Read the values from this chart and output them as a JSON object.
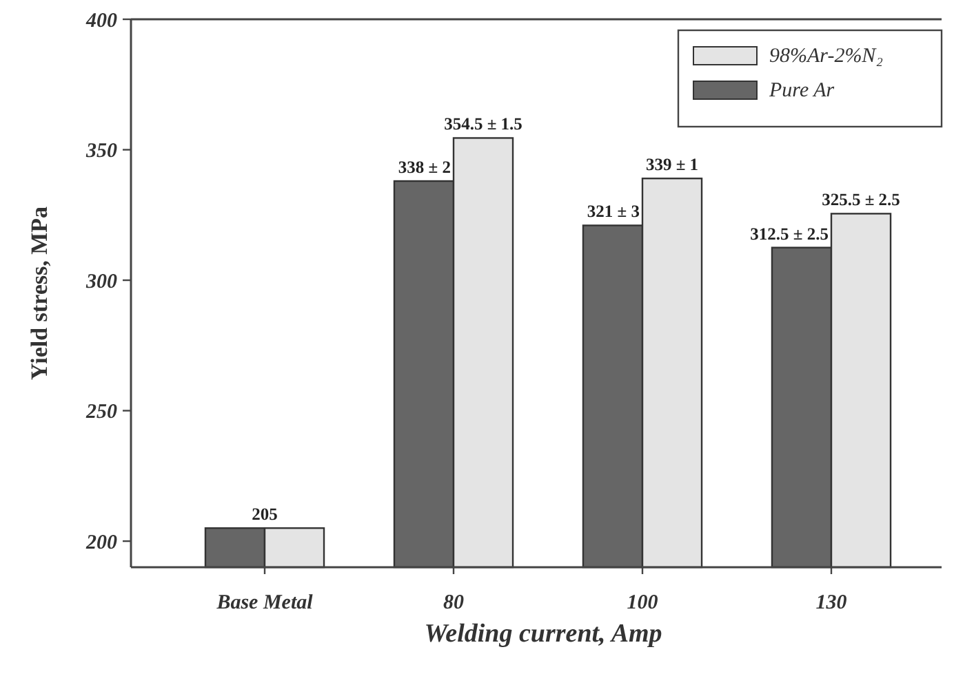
{
  "chart_data": {
    "type": "bar",
    "xlabel": "Welding current, Amp",
    "ylabel": "Yield stress, MPa",
    "categories": [
      "Base Metal",
      "80",
      "100",
      "130"
    ],
    "series": [
      {
        "name": "Pure Ar",
        "color": "#666666",
        "values": [
          205,
          338,
          321,
          312.5
        ],
        "value_labels": [
          null,
          "338 ± 2",
          "321 ± 3",
          "312.5 ± 2.5"
        ]
      },
      {
        "name": "98%Ar-2%N₂",
        "color": "#e4e4e4",
        "values": [
          205,
          354.5,
          339,
          325.5
        ],
        "value_labels": [
          null,
          "354.5 ± 1.5",
          "339 ± 1",
          "325.5 ± 2.5"
        ]
      }
    ],
    "ylim": [
      190,
      400
    ],
    "yticks": [
      200,
      250,
      300,
      350,
      400
    ],
    "legend": "top right",
    "annotations": [
      {
        "text": "205",
        "x": "Base Metal",
        "y": 205
      }
    ]
  }
}
